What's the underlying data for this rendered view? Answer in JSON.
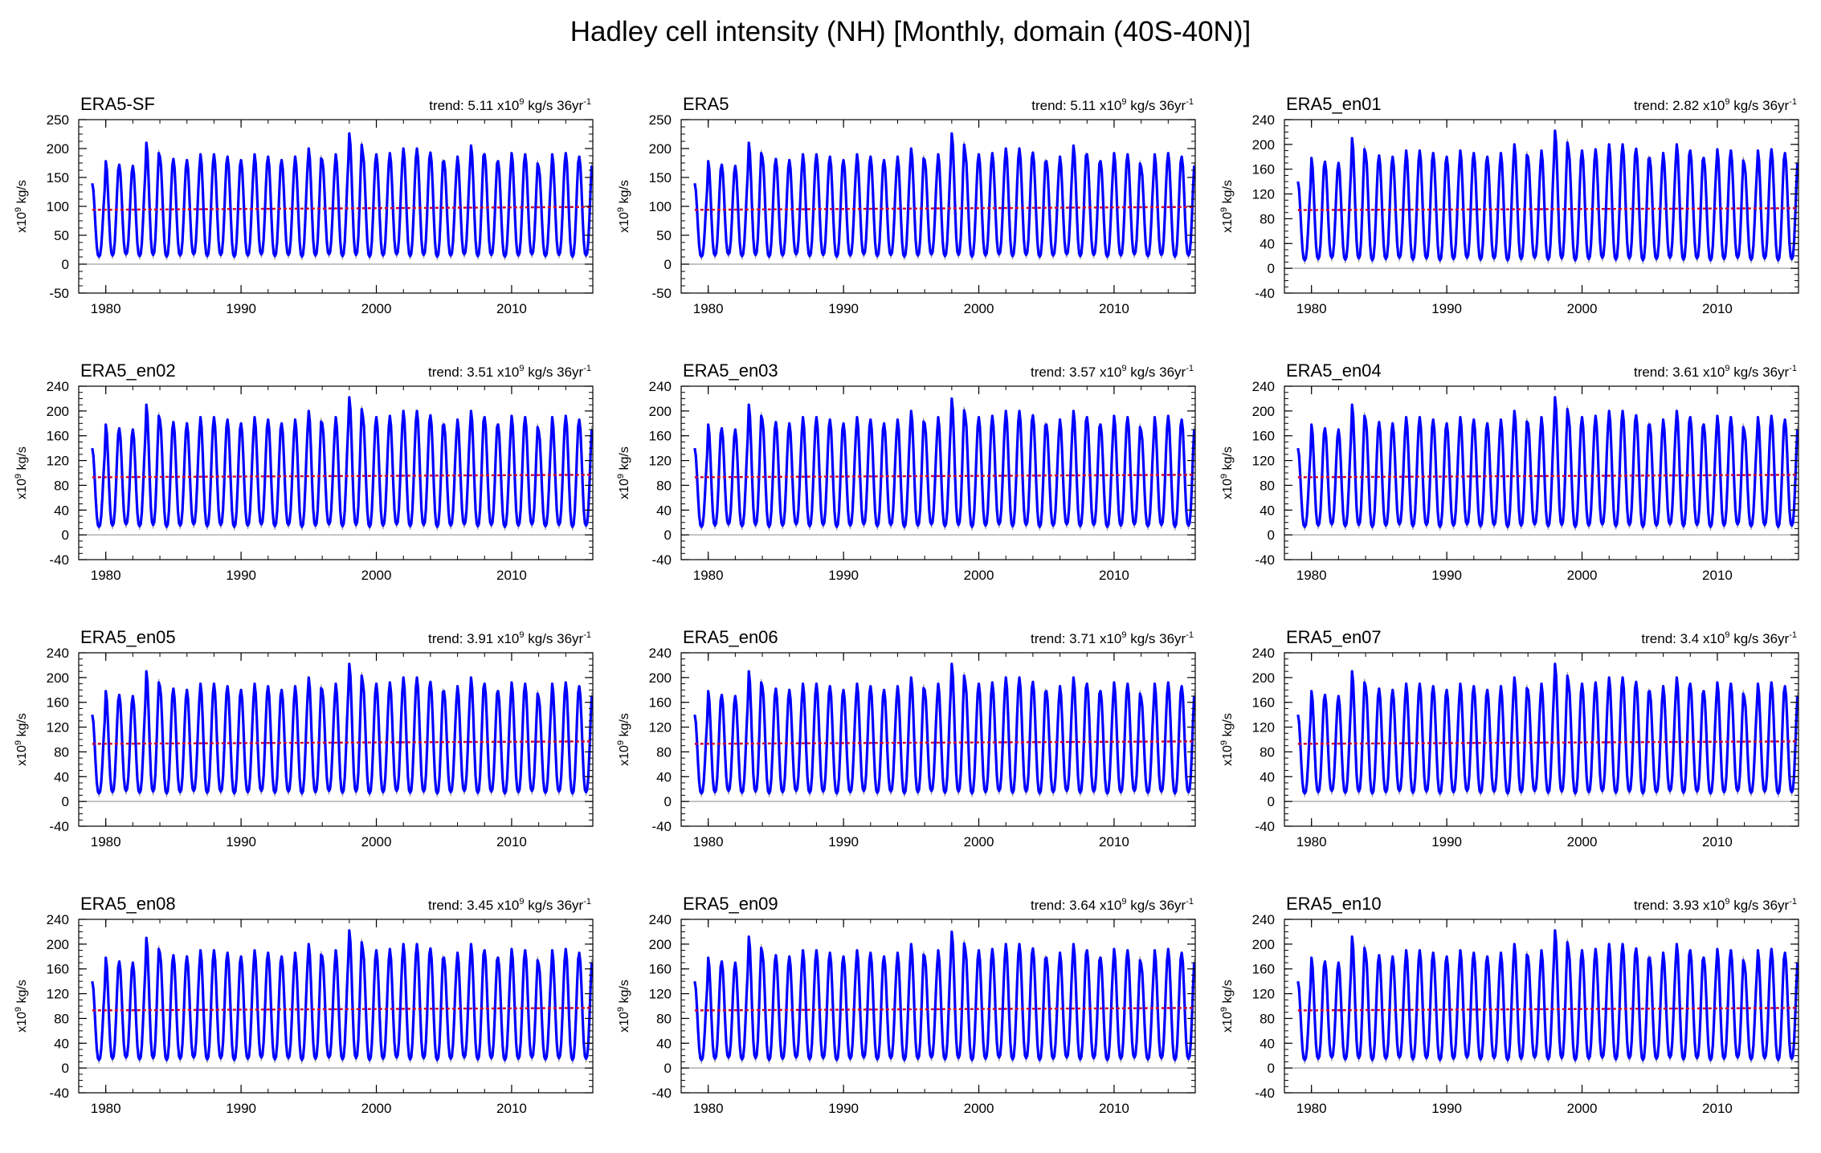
{
  "figure": {
    "title": "Hadley cell intensity (NH) [Monthly, domain (40S-40N)]"
  },
  "colors": {
    "main_line": "#0000ff",
    "spread": "#8c8c8c",
    "trend_line": "#cc0033",
    "zero_line": "#a0a0a0",
    "axes": "#000000"
  },
  "chart_data": [
    {
      "type": "line",
      "title": "ERA5-SF",
      "trend": {
        "prefix": "trend: 5.11 x10",
        "sup": "9",
        "mid": " kg/s 36yr",
        "sup2": "-1"
      },
      "ylabel": "x10^9 kg/s",
      "ylim": [
        -50,
        250
      ],
      "yticks": [
        -50,
        0,
        50,
        100,
        150,
        200,
        250
      ],
      "xlim": [
        1978,
        2016
      ],
      "xticks": [
        1980,
        1990,
        2000,
        2010
      ],
      "series": [
        {
          "name": "monthly",
          "start": 1979,
          "peak_peaks": [
            140,
            178,
            172,
            170,
            210,
            186,
            182,
            180,
            190,
            190,
            186,
            180,
            190,
            186,
            180,
            186,
            200,
            180,
            190,
            226,
            192,
            190,
            192,
            200,
            200,
            193,
            178,
            186,
            205,
            190,
            178,
            192,
            190,
            168,
            190,
            192,
            186
          ],
          "minimum": 15
        },
        {
          "name": "trend",
          "start_value": 94,
          "end_value": 99
        }
      ]
    },
    {
      "type": "line",
      "title": "ERA5",
      "trend": {
        "prefix": "trend: 5.11 x10",
        "sup": "9",
        "mid": " kg/s 36yr",
        "sup2": "-1"
      },
      "ylabel": "x10^9 kg/s",
      "ylim": [
        -50,
        250
      ],
      "yticks": [
        -50,
        0,
        50,
        100,
        150,
        200,
        250
      ],
      "xlim": [
        1978,
        2016
      ],
      "xticks": [
        1980,
        1990,
        2000,
        2010
      ],
      "series": [
        {
          "name": "monthly",
          "start": 1979,
          "peak_peaks": [
            140,
            178,
            172,
            170,
            210,
            186,
            182,
            180,
            190,
            190,
            186,
            180,
            190,
            186,
            180,
            186,
            200,
            180,
            190,
            226,
            192,
            190,
            192,
            200,
            200,
            193,
            178,
            186,
            205,
            190,
            178,
            192,
            190,
            168,
            190,
            192,
            186
          ],
          "minimum": 15
        },
        {
          "name": "trend",
          "start_value": 94,
          "end_value": 99
        }
      ]
    },
    {
      "type": "line",
      "title": "ERA5_en01",
      "trend": {
        "prefix": "trend: 2.82 x10",
        "sup": "9",
        "mid": " kg/s 36yr",
        "sup2": "-1"
      },
      "ylabel": "x10^9 kg/s",
      "ylim": [
        -40,
        240
      ],
      "yticks": [
        -40,
        0,
        40,
        80,
        120,
        160,
        200,
        240
      ],
      "xlim": [
        1978,
        2016
      ],
      "xticks": [
        1980,
        1990,
        2000,
        2010
      ],
      "series": [
        {
          "name": "monthly",
          "start": 1979,
          "peak_peaks": [
            140,
            178,
            172,
            170,
            210,
            186,
            182,
            180,
            190,
            190,
            186,
            180,
            190,
            186,
            180,
            186,
            200,
            180,
            190,
            222,
            192,
            190,
            192,
            200,
            200,
            193,
            178,
            186,
            200,
            190,
            178,
            192,
            190,
            168,
            190,
            192,
            186
          ],
          "minimum": 15
        },
        {
          "name": "trend",
          "start_value": 94,
          "end_value": 97
        }
      ]
    },
    {
      "type": "line",
      "title": "ERA5_en02",
      "trend": {
        "prefix": "trend: 3.51 x10",
        "sup": "9",
        "mid": " kg/s 36yr",
        "sup2": "-1"
      },
      "ylabel": "x10^9 kg/s",
      "ylim": [
        -40,
        240
      ],
      "yticks": [
        -40,
        0,
        40,
        80,
        120,
        160,
        200,
        240
      ],
      "xlim": [
        1978,
        2016
      ],
      "xticks": [
        1980,
        1990,
        2000,
        2010
      ],
      "series": [
        {
          "name": "monthly",
          "start": 1979,
          "peak_peaks": [
            140,
            178,
            172,
            170,
            210,
            186,
            182,
            180,
            190,
            190,
            186,
            180,
            190,
            186,
            180,
            186,
            200,
            180,
            190,
            222,
            192,
            190,
            192,
            200,
            200,
            193,
            178,
            186,
            200,
            190,
            178,
            192,
            190,
            168,
            190,
            192,
            186
          ],
          "minimum": 15
        },
        {
          "name": "trend",
          "start_value": 93,
          "end_value": 97
        }
      ]
    },
    {
      "type": "line",
      "title": "ERA5_en03",
      "trend": {
        "prefix": "trend: 3.57 x10",
        "sup": "9",
        "mid": " kg/s 36yr",
        "sup2": "-1"
      },
      "ylabel": "x10^9 kg/s",
      "ylim": [
        -40,
        240
      ],
      "yticks": [
        -40,
        0,
        40,
        80,
        120,
        160,
        200,
        240
      ],
      "xlim": [
        1978,
        2016
      ],
      "xticks": [
        1980,
        1990,
        2000,
        2010
      ],
      "series": [
        {
          "name": "monthly",
          "start": 1979,
          "peak_peaks": [
            140,
            178,
            172,
            170,
            210,
            186,
            182,
            180,
            190,
            190,
            186,
            180,
            190,
            186,
            180,
            186,
            200,
            180,
            190,
            220,
            192,
            190,
            192,
            200,
            200,
            193,
            178,
            186,
            200,
            190,
            178,
            192,
            190,
            168,
            190,
            192,
            186
          ],
          "minimum": 15
        },
        {
          "name": "trend",
          "start_value": 93,
          "end_value": 97
        }
      ]
    },
    {
      "type": "line",
      "title": "ERA5_en04",
      "trend": {
        "prefix": "trend: 3.61 x10",
        "sup": "9",
        "mid": " kg/s 36yr",
        "sup2": "-1"
      },
      "ylabel": "x10^9 kg/s",
      "ylim": [
        -40,
        240
      ],
      "yticks": [
        -40,
        0,
        40,
        80,
        120,
        160,
        200,
        240
      ],
      "xlim": [
        1978,
        2016
      ],
      "xticks": [
        1980,
        1990,
        2000,
        2010
      ],
      "series": [
        {
          "name": "monthly",
          "start": 1979,
          "peak_peaks": [
            140,
            178,
            172,
            170,
            210,
            186,
            182,
            180,
            190,
            190,
            186,
            180,
            190,
            186,
            180,
            186,
            200,
            180,
            190,
            222,
            192,
            190,
            192,
            200,
            200,
            193,
            178,
            186,
            200,
            190,
            178,
            192,
            190,
            168,
            190,
            192,
            186
          ],
          "minimum": 15
        },
        {
          "name": "trend",
          "start_value": 93,
          "end_value": 97
        }
      ]
    },
    {
      "type": "line",
      "title": "ERA5_en05",
      "trend": {
        "prefix": "trend: 3.91 x10",
        "sup": "9",
        "mid": " kg/s 36yr",
        "sup2": "-1"
      },
      "ylabel": "x10^9 kg/s",
      "ylim": [
        -40,
        240
      ],
      "yticks": [
        -40,
        0,
        40,
        80,
        120,
        160,
        200,
        240
      ],
      "xlim": [
        1978,
        2016
      ],
      "xticks": [
        1980,
        1990,
        2000,
        2010
      ],
      "series": [
        {
          "name": "monthly",
          "start": 1979,
          "peak_peaks": [
            140,
            178,
            172,
            170,
            210,
            186,
            182,
            180,
            190,
            190,
            186,
            180,
            190,
            186,
            180,
            186,
            200,
            180,
            190,
            222,
            192,
            190,
            192,
            200,
            200,
            193,
            178,
            186,
            200,
            190,
            178,
            192,
            190,
            168,
            190,
            192,
            186
          ],
          "minimum": 15
        },
        {
          "name": "trend",
          "start_value": 93,
          "end_value": 97
        }
      ]
    },
    {
      "type": "line",
      "title": "ERA5_en06",
      "trend": {
        "prefix": "trend: 3.71 x10",
        "sup": "9",
        "mid": " kg/s 36yr",
        "sup2": "-1"
      },
      "ylabel": "x10^9 kg/s",
      "ylim": [
        -40,
        240
      ],
      "yticks": [
        -40,
        0,
        40,
        80,
        120,
        160,
        200,
        240
      ],
      "xlim": [
        1978,
        2016
      ],
      "xticks": [
        1980,
        1990,
        2000,
        2010
      ],
      "series": [
        {
          "name": "monthly",
          "start": 1979,
          "peak_peaks": [
            140,
            178,
            172,
            170,
            210,
            186,
            182,
            180,
            190,
            190,
            186,
            180,
            190,
            186,
            180,
            186,
            200,
            180,
            190,
            222,
            192,
            190,
            192,
            200,
            200,
            193,
            178,
            186,
            200,
            190,
            178,
            192,
            190,
            168,
            190,
            192,
            186
          ],
          "minimum": 15
        },
        {
          "name": "trend",
          "start_value": 93,
          "end_value": 97
        }
      ]
    },
    {
      "type": "line",
      "title": "ERA5_en07",
      "trend": {
        "prefix": "trend: 3.4 x10",
        "sup": "9",
        "mid": " kg/s 36yr",
        "sup2": "-1"
      },
      "ylabel": "x10^9 kg/s",
      "ylim": [
        -40,
        240
      ],
      "yticks": [
        -40,
        0,
        40,
        80,
        120,
        160,
        200,
        240
      ],
      "xlim": [
        1978,
        2016
      ],
      "xticks": [
        1980,
        1990,
        2000,
        2010
      ],
      "series": [
        {
          "name": "monthly",
          "start": 1979,
          "peak_peaks": [
            140,
            178,
            172,
            170,
            210,
            186,
            182,
            180,
            190,
            190,
            186,
            180,
            190,
            186,
            180,
            186,
            200,
            180,
            190,
            222,
            192,
            190,
            192,
            200,
            200,
            193,
            178,
            186,
            200,
            190,
            178,
            192,
            190,
            168,
            190,
            192,
            186
          ],
          "minimum": 15
        },
        {
          "name": "trend",
          "start_value": 93,
          "end_value": 97
        }
      ]
    },
    {
      "type": "line",
      "title": "ERA5_en08",
      "trend": {
        "prefix": "trend: 3.45 x10",
        "sup": "9",
        "mid": " kg/s 36yr",
        "sup2": "-1"
      },
      "ylabel": "x10^9 kg/s",
      "ylim": [
        -40,
        240
      ],
      "yticks": [
        -40,
        0,
        40,
        80,
        120,
        160,
        200,
        240
      ],
      "xlim": [
        1978,
        2016
      ],
      "xticks": [
        1980,
        1990,
        2000,
        2010
      ],
      "series": [
        {
          "name": "monthly",
          "start": 1979,
          "peak_peaks": [
            140,
            178,
            172,
            170,
            210,
            186,
            182,
            180,
            190,
            190,
            186,
            180,
            190,
            186,
            180,
            186,
            200,
            180,
            190,
            222,
            192,
            190,
            192,
            200,
            200,
            193,
            178,
            186,
            200,
            190,
            178,
            192,
            190,
            168,
            190,
            192,
            186
          ],
          "minimum": 15
        },
        {
          "name": "trend",
          "start_value": 93,
          "end_value": 97
        }
      ]
    },
    {
      "type": "line",
      "title": "ERA5_en09",
      "trend": {
        "prefix": "trend: 3.64 x10",
        "sup": "9",
        "mid": " kg/s 36yr",
        "sup2": "-1"
      },
      "ylabel": "x10^9 kg/s",
      "ylim": [
        -40,
        240
      ],
      "yticks": [
        -40,
        0,
        40,
        80,
        120,
        160,
        200,
        240
      ],
      "xlim": [
        1978,
        2016
      ],
      "xticks": [
        1980,
        1990,
        2000,
        2010
      ],
      "series": [
        {
          "name": "monthly",
          "start": 1979,
          "peak_peaks": [
            140,
            178,
            172,
            170,
            212,
            186,
            182,
            180,
            190,
            190,
            186,
            180,
            190,
            186,
            180,
            186,
            200,
            180,
            190,
            220,
            192,
            190,
            192,
            200,
            200,
            193,
            178,
            186,
            200,
            190,
            178,
            192,
            190,
            168,
            190,
            192,
            186
          ],
          "minimum": 15
        },
        {
          "name": "trend",
          "start_value": 93,
          "end_value": 97
        }
      ]
    },
    {
      "type": "line",
      "title": "ERA5_en10",
      "trend": {
        "prefix": "trend: 3.93 x10",
        "sup": "9",
        "mid": " kg/s 36yr",
        "sup2": "-1"
      },
      "ylabel": "x10^9 kg/s",
      "ylim": [
        -40,
        240
      ],
      "yticks": [
        -40,
        0,
        40,
        80,
        120,
        160,
        200,
        240
      ],
      "xlim": [
        1978,
        2016
      ],
      "xticks": [
        1980,
        1990,
        2000,
        2010
      ],
      "series": [
        {
          "name": "monthly",
          "start": 1979,
          "peak_peaks": [
            140,
            178,
            172,
            170,
            212,
            186,
            182,
            180,
            190,
            190,
            186,
            180,
            190,
            186,
            180,
            186,
            200,
            180,
            190,
            222,
            192,
            190,
            192,
            200,
            200,
            193,
            178,
            186,
            200,
            190,
            178,
            192,
            190,
            168,
            190,
            192,
            186
          ],
          "minimum": 15
        },
        {
          "name": "trend",
          "start_value": 93,
          "end_value": 97
        }
      ]
    }
  ]
}
